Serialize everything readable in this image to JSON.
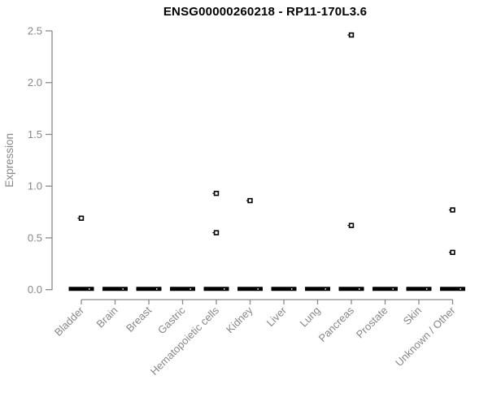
{
  "chart_data": {
    "type": "scatter",
    "subtype": "strip-plot",
    "title": "ENSG00000260218 - RP11-170L3.6",
    "xlabel": "",
    "ylabel": "Expression",
    "ylim": [
      0.0,
      2.5
    ],
    "yticks": [
      "0.0",
      "0.5",
      "1.0",
      "1.5",
      "2.0",
      "2.5"
    ],
    "grid": false,
    "legend": null,
    "categories": [
      "Bladder",
      "Brain",
      "Breast",
      "Gastric",
      "Hematopoietic cells",
      "Kidney",
      "Liver",
      "Lung",
      "Pancreas",
      "Prostate",
      "Skin",
      "Unknown / Other"
    ],
    "points": [
      {
        "category": "Bladder",
        "value": 0.69
      },
      {
        "category": "Hematopoietic cells",
        "value": 0.93
      },
      {
        "category": "Hematopoietic cells",
        "value": 0.55
      },
      {
        "category": "Kidney",
        "value": 0.86
      },
      {
        "category": "Pancreas",
        "value": 2.46
      },
      {
        "category": "Pancreas",
        "value": 0.62
      },
      {
        "category": "Unknown / Other",
        "value": 0.77
      },
      {
        "category": "Unknown / Other",
        "value": 0.36
      }
    ],
    "zero_value_clusters": {
      "description": "dense cluster of overlapping points at expression 0 rendered as a thick black bar in every category",
      "value": 0.0,
      "categories": [
        "Bladder",
        "Brain",
        "Breast",
        "Gastric",
        "Hematopoietic cells",
        "Kidney",
        "Liver",
        "Lung",
        "Pancreas",
        "Prostate",
        "Skin",
        "Unknown / Other"
      ]
    },
    "colors": {
      "background": "#ffffff",
      "title": "#000000",
      "axis_line": "#8a8a8a",
      "tick_label": "#878787",
      "axis_label": "#878787",
      "marker_stroke": "#000000",
      "marker_fill": "#ffffff",
      "zero_bar": "#000000"
    }
  }
}
